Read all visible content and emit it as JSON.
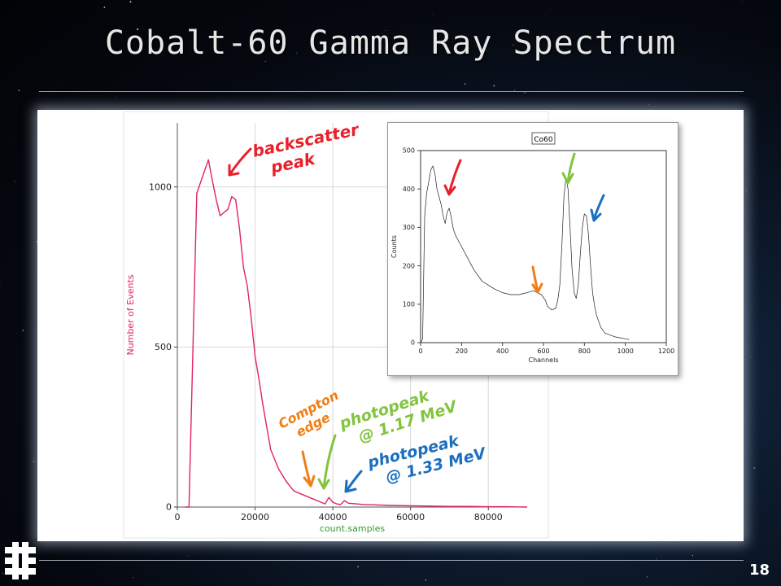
{
  "slide": {
    "title": "Cobalt-60 Gamma Ray Spectrum",
    "page_number": "18",
    "logo_icon": "fermilab-logo-icon"
  },
  "annotations": {
    "backscatter": [
      "backscatter",
      "peak"
    ],
    "compton": [
      "Compton",
      "edge"
    ],
    "photopeak1": [
      "photopeak",
      "@ 1.17 MeV"
    ],
    "photopeak2": [
      "photopeak",
      "@ 1.33 MeV"
    ],
    "colors": {
      "backscatter": "#e8202a",
      "compton": "#f07d16",
      "photopeak1": "#82c440",
      "photopeak2": "#1a6fc0"
    }
  },
  "chart_data": [
    {
      "type": "line",
      "title": "",
      "xlabel": "count.samples",
      "ylabel": "Number of Events",
      "xlim": [
        0,
        90000
      ],
      "ylim": [
        0,
        1200
      ],
      "xticks": [
        "0",
        "20000",
        "40000",
        "60000",
        "80000"
      ],
      "yticks": [
        "0",
        "500",
        "1000"
      ],
      "grid": true,
      "series": [
        {
          "color": "#e0245e",
          "x": [
            2000,
            3000,
            5000,
            7000,
            8000,
            9000,
            10000,
            11000,
            12000,
            13000,
            14000,
            15000,
            16000,
            17000,
            18000,
            19000,
            20000,
            21000,
            22000,
            23000,
            24000,
            26000,
            28000,
            30000,
            32000,
            34000,
            35000,
            36000,
            37000,
            38000,
            39000,
            40000,
            41000,
            42000,
            43000,
            44000,
            46000,
            48000,
            50000,
            55000,
            60000,
            65000,
            70000,
            75000,
            80000,
            85000,
            90000
          ],
          "y": [
            0,
            0,
            980,
            1050,
            1085,
            1020,
            960,
            910,
            920,
            930,
            970,
            960,
            870,
            750,
            690,
            590,
            470,
            400,
            320,
            250,
            180,
            120,
            80,
            50,
            40,
            30,
            25,
            20,
            15,
            10,
            30,
            15,
            10,
            8,
            20,
            12,
            10,
            8,
            7,
            5,
            4,
            3,
            2,
            2,
            1,
            1,
            0
          ]
        }
      ]
    },
    {
      "type": "line",
      "title": "Co60",
      "xlabel": "Channels",
      "ylabel": "Counts",
      "xlim": [
        0,
        1200
      ],
      "ylim": [
        0,
        500
      ],
      "xticks": [
        "0",
        "200",
        "400",
        "600",
        "800",
        "1000",
        "1200"
      ],
      "yticks": [
        "0",
        "100",
        "200",
        "300",
        "400",
        "500"
      ],
      "grid": false,
      "series": [
        {
          "color": "#222222",
          "x": [
            0,
            10,
            20,
            30,
            40,
            50,
            60,
            70,
            80,
            90,
            100,
            110,
            120,
            130,
            140,
            150,
            160,
            170,
            180,
            200,
            220,
            240,
            260,
            280,
            300,
            330,
            360,
            400,
            440,
            480,
            520,
            550,
            570,
            590,
            610,
            620,
            640,
            660,
            670,
            680,
            690,
            700,
            710,
            720,
            730,
            740,
            750,
            760,
            770,
            780,
            790,
            800,
            810,
            820,
            830,
            840,
            850,
            860,
            880,
            900,
            950,
            1000,
            1020
          ],
          "y": [
            0,
            10,
            330,
            390,
            420,
            450,
            460,
            440,
            400,
            380,
            360,
            330,
            310,
            340,
            350,
            325,
            295,
            280,
            270,
            250,
            230,
            210,
            190,
            175,
            160,
            150,
            140,
            130,
            125,
            125,
            130,
            135,
            130,
            125,
            110,
            95,
            85,
            90,
            110,
            150,
            250,
            380,
            430,
            400,
            300,
            190,
            130,
            115,
            150,
            230,
            300,
            335,
            330,
            280,
            200,
            130,
            95,
            70,
            40,
            25,
            15,
            10,
            8
          ]
        }
      ]
    }
  ]
}
